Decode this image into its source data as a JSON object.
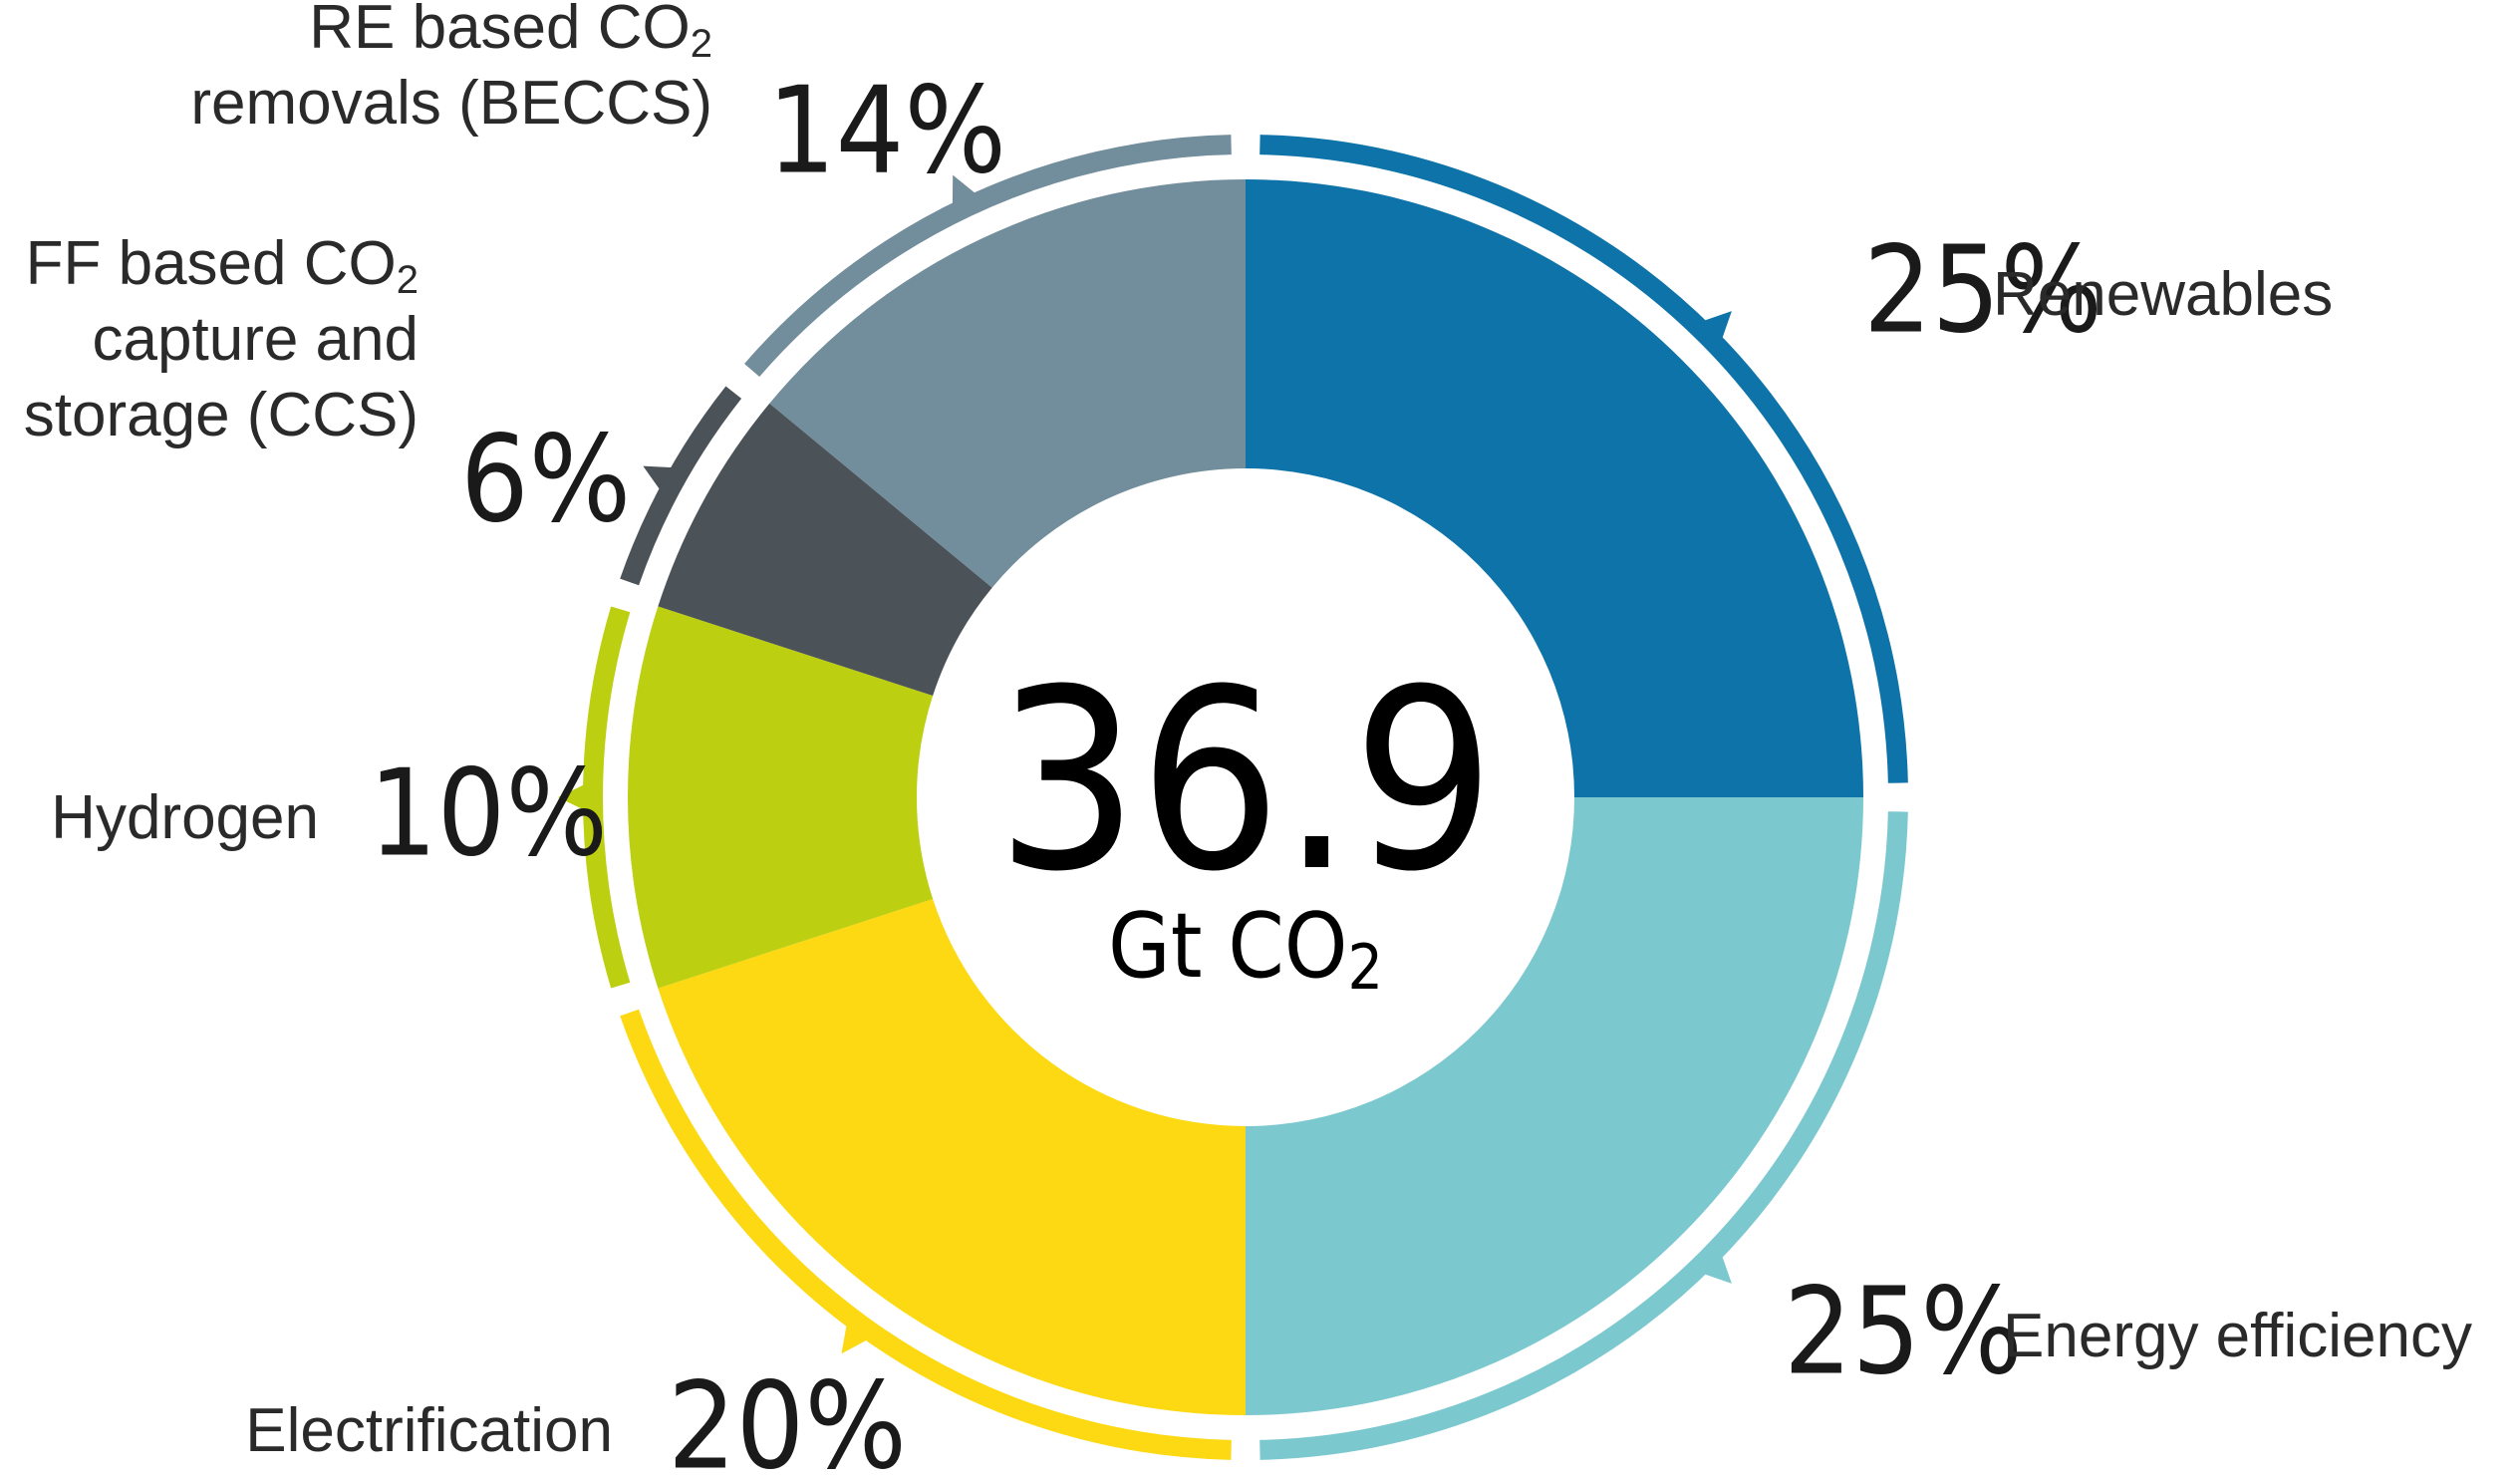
{
  "chart_data": {
    "type": "pie",
    "center": {
      "value": "36.9",
      "unit_prefix": "Gt CO",
      "unit_sub": "2"
    },
    "slices": [
      {
        "id": "renewables",
        "label_lines": [
          "Renewables"
        ],
        "percent_label": "25%",
        "value": 25,
        "color": "#0e73a8"
      },
      {
        "id": "energy-efficiency",
        "label_lines": [
          "Energy efficiency"
        ],
        "percent_label": "25%",
        "value": 25,
        "color": "#7cc8cf"
      },
      {
        "id": "electrification",
        "label_lines": [
          "Electrification"
        ],
        "percent_label": "20%",
        "value": 20,
        "color": "#fcd913"
      },
      {
        "id": "hydrogen",
        "label_lines": [
          "Hydrogen"
        ],
        "percent_label": "10%",
        "value": 10,
        "color": "#bccf10"
      },
      {
        "id": "ccs",
        "label_lines": [
          "FF based CO",
          "capture and",
          "storage (CCS)"
        ],
        "percent_label": "6%",
        "value": 6,
        "color": "#4b5358",
        "sub_first_line": true
      },
      {
        "id": "beccs",
        "label_lines": [
          "RE based CO",
          "removals (BECCS)"
        ],
        "percent_label": "14%",
        "value": 14,
        "color": "#728d9b",
        "sub_first_line": true
      }
    ],
    "subscript": "2"
  }
}
